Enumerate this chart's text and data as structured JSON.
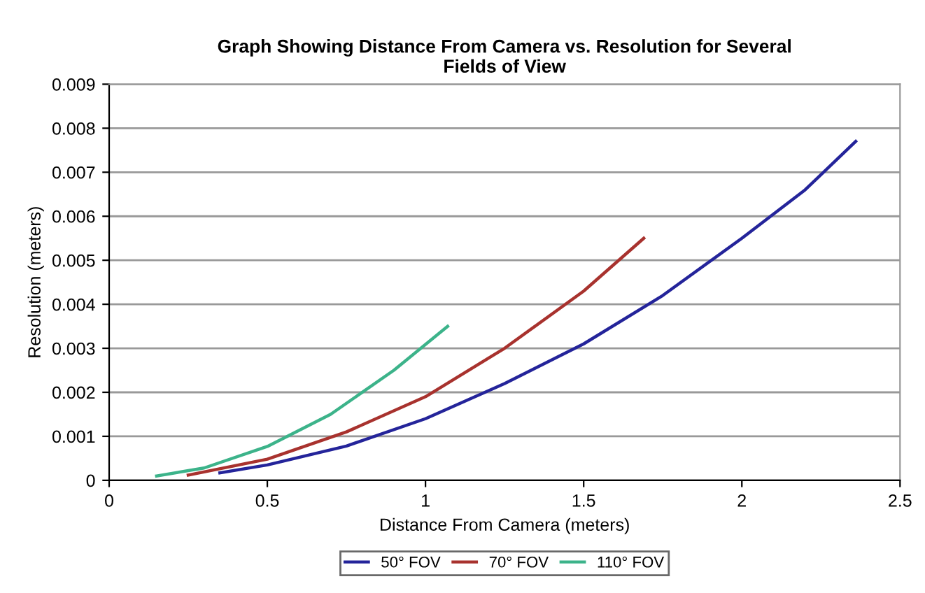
{
  "chart_data": {
    "type": "line",
    "title": "Graph Showing Distance From Camera vs. Resolution for Several\nFields of View",
    "xlabel": "Distance From Camera (meters)",
    "ylabel": "Resolution (meters)",
    "xlim": [
      0,
      2.5
    ],
    "xticks": [
      0,
      0.5,
      1,
      1.5,
      2,
      2.5
    ],
    "ylim": [
      0,
      0.009
    ],
    "yticks": [
      0,
      0.001,
      0.002,
      0.003,
      0.004,
      0.005,
      0.006,
      0.007,
      0.008,
      0.009
    ],
    "grid": "y",
    "legend": "bottom",
    "marker": "none",
    "line_style": "solid",
    "series": [
      {
        "name": "50° FOV",
        "color": "#24249a",
        "x": [
          0.35,
          0.5,
          0.75,
          1,
          1.25,
          1.5,
          1.75,
          2,
          2.2,
          2.36
        ],
        "values": [
          0.00017,
          0.00035,
          0.00078,
          0.0014,
          0.0022,
          0.0031,
          0.0042,
          0.0055,
          0.0066,
          0.0077
        ]
      },
      {
        "name": "70° FOV",
        "color": "#a8322e",
        "x": [
          0.25,
          0.5,
          0.75,
          1,
          1.25,
          1.5,
          1.69
        ],
        "values": [
          0.00012,
          0.00048,
          0.0011,
          0.0019,
          0.003,
          0.0043,
          0.0055
        ]
      },
      {
        "name": "110° FOV",
        "color": "#3cb38a",
        "x": [
          0.15,
          0.3,
          0.5,
          0.7,
          0.9,
          1.07
        ],
        "values": [
          0.0001,
          0.00028,
          0.00077,
          0.0015,
          0.0025,
          0.0035
        ]
      }
    ]
  }
}
